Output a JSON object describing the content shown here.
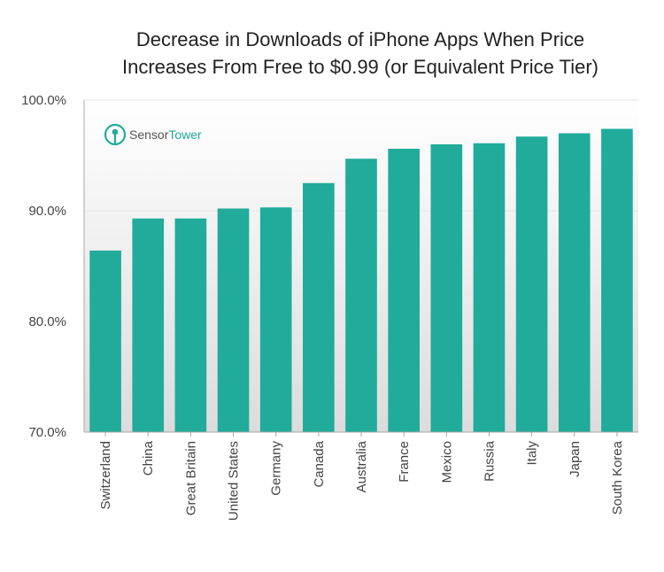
{
  "chart_data": {
    "type": "bar",
    "title_lines": [
      "Decrease in Downloads of iPhone Apps When Price",
      "Increases From Free to $0.99 (or Equivalent Price Tier)"
    ],
    "categories": [
      "Switzerland",
      "China",
      "Great Britain",
      "United States",
      "Germany",
      "Canada",
      "Australia",
      "France",
      "Mexico",
      "Russia",
      "Italy",
      "Japan",
      "South Korea"
    ],
    "values": [
      86.4,
      89.3,
      89.3,
      90.2,
      90.3,
      92.5,
      94.7,
      95.6,
      96.0,
      96.1,
      96.7,
      97.0,
      97.4
    ],
    "ylim": [
      70,
      100
    ],
    "yticks": [
      70,
      80,
      90,
      100
    ],
    "ytick_labels": [
      "70.0%",
      "80.0%",
      "90.0%",
      "100.0%"
    ],
    "xlabel": "",
    "ylabel": "",
    "grid": true,
    "legend": "none"
  },
  "logo": {
    "brand": "SensorTower",
    "part1": "Sensor",
    "part2": "Tower"
  },
  "colors": {
    "bar": "#21ab9a",
    "plot_top": "#ffffff",
    "plot_bottom": "#dcdcdc",
    "axis": "#aaaaaa",
    "grid": "#e6e6e6",
    "logo_gray": "#555555",
    "logo_teal": "#21ab9a"
  }
}
